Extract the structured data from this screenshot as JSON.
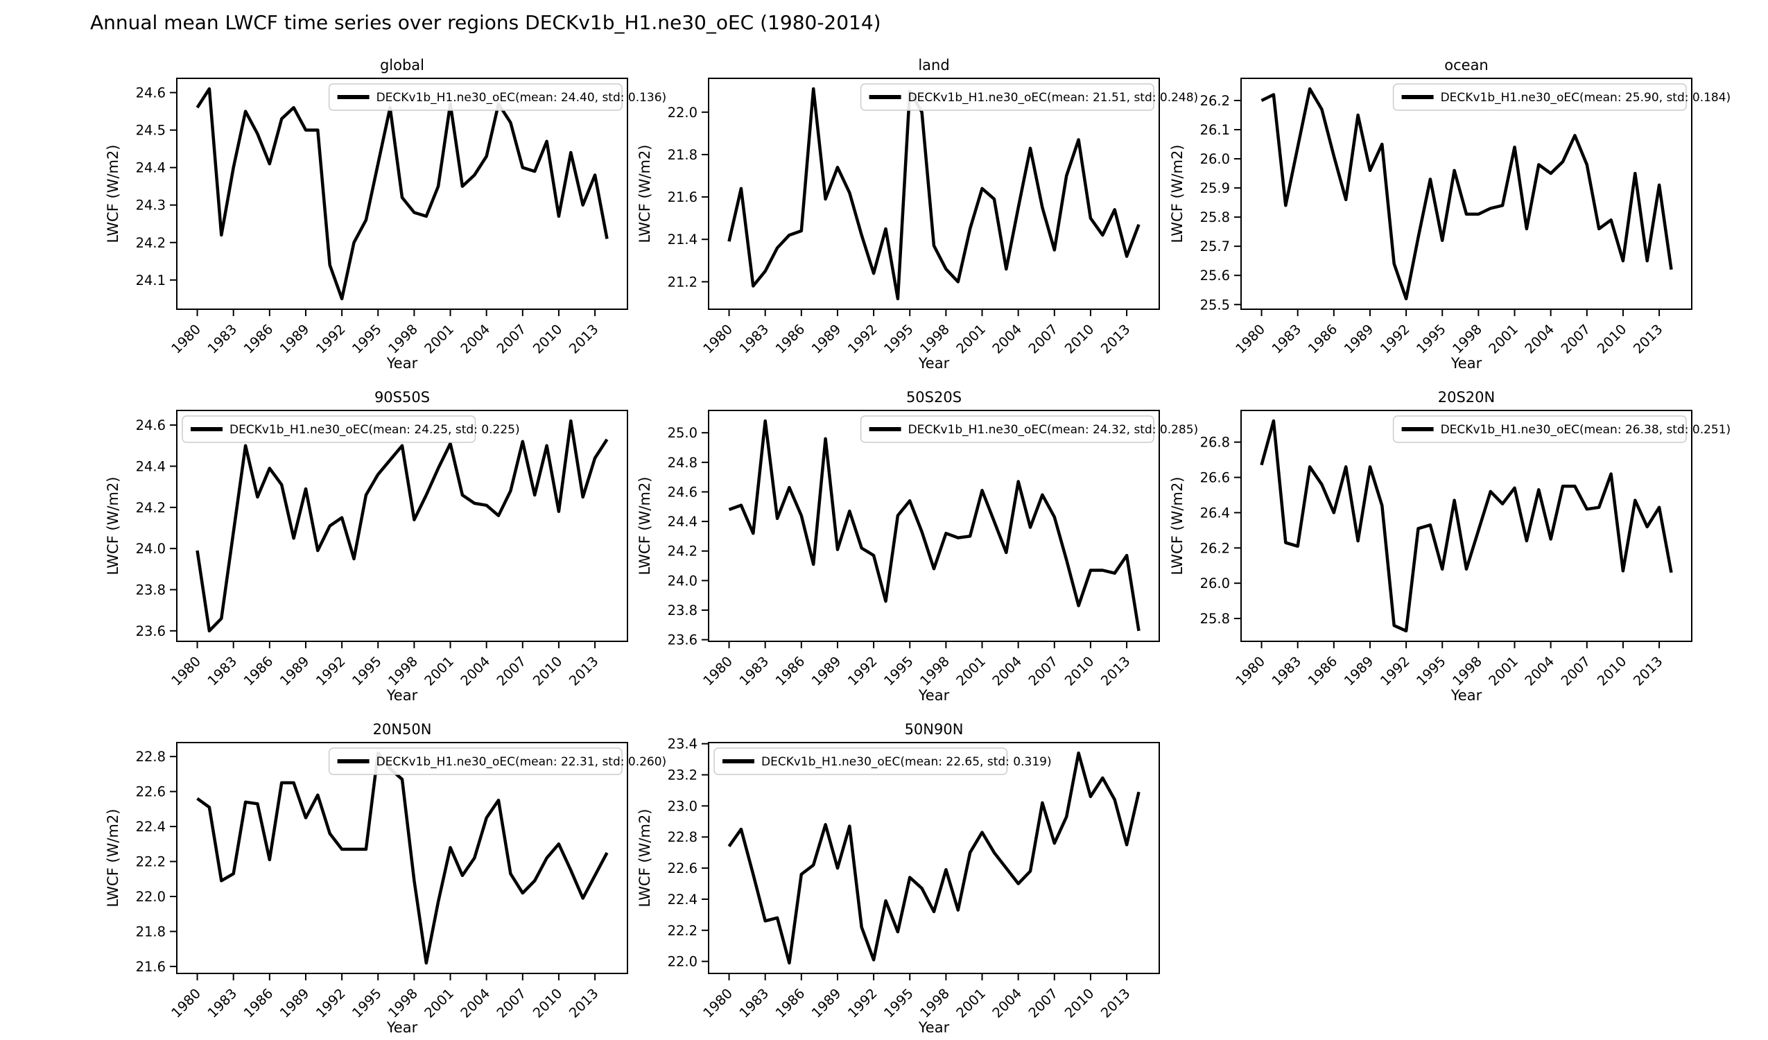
{
  "figure": {
    "suptitle": "Annual mean LWCF time series over regions DECKv1b_H1.ne30_oEC (1980-2014)",
    "xlabel": "Year",
    "ylabel": "LWCF (W/m2)",
    "series_name": "DECKv1b_H1.ne30_oEC",
    "line_color": "#000000",
    "background_color": "#ffffff",
    "legend_border_color": "#cccccc"
  },
  "chart_data": [
    {
      "type": "line",
      "title": "global",
      "legend_label": "DECKv1b_H1.ne30_oEC(mean: 24.40, std: 0.136)",
      "mean": 24.4,
      "std": 0.136,
      "legend_loc": "upper right",
      "x_start": 1980,
      "x_end": 2014,
      "xticks": [
        1980,
        1983,
        1986,
        1989,
        1992,
        1995,
        1998,
        2001,
        2004,
        2007,
        2010,
        2013
      ],
      "yticks": [
        "24.1",
        "24.2",
        "24.3",
        "24.4",
        "24.5",
        "24.6"
      ],
      "values": [
        24.56,
        24.61,
        24.22,
        24.4,
        24.55,
        24.49,
        24.41,
        24.53,
        24.56,
        24.5,
        24.5,
        24.14,
        24.05,
        24.2,
        24.26,
        24.41,
        24.56,
        24.32,
        24.28,
        24.27,
        24.35,
        24.57,
        24.35,
        24.38,
        24.43,
        24.57,
        24.52,
        24.4,
        24.39,
        24.47,
        24.27,
        24.44,
        24.3,
        24.38,
        24.21
      ]
    },
    {
      "type": "line",
      "title": "land",
      "legend_label": "DECKv1b_H1.ne30_oEC(mean: 21.51, std: 0.248)",
      "mean": 21.51,
      "std": 0.248,
      "legend_loc": "upper right",
      "x_start": 1980,
      "x_end": 2014,
      "xticks": [
        1980,
        1983,
        1986,
        1989,
        1992,
        1995,
        1998,
        2001,
        2004,
        2007,
        2010,
        2013
      ],
      "yticks": [
        "21.2",
        "21.4",
        "21.6",
        "21.8",
        "22.0"
      ],
      "values": [
        21.39,
        21.64,
        21.18,
        21.25,
        21.36,
        21.42,
        21.44,
        22.11,
        21.59,
        21.74,
        21.62,
        21.42,
        21.24,
        21.45,
        21.12,
        22.1,
        22.0,
        21.37,
        21.26,
        21.2,
        21.45,
        21.64,
        21.59,
        21.26,
        21.55,
        21.83,
        21.55,
        21.35,
        21.7,
        21.87,
        21.5,
        21.42,
        21.54,
        21.32,
        21.47
      ]
    },
    {
      "type": "line",
      "title": "ocean",
      "legend_label": "DECKv1b_H1.ne30_oEC(mean: 25.90, std: 0.184)",
      "mean": 25.9,
      "std": 0.184,
      "legend_loc": "upper right",
      "x_start": 1980,
      "x_end": 2014,
      "xticks": [
        1980,
        1983,
        1986,
        1989,
        1992,
        1995,
        1998,
        2001,
        2004,
        2007,
        2010,
        2013
      ],
      "yticks": [
        "25.5",
        "25.6",
        "25.7",
        "25.8",
        "25.9",
        "26.0",
        "26.1",
        "26.2"
      ],
      "values": [
        26.2,
        26.22,
        25.84,
        26.04,
        26.24,
        26.17,
        26.01,
        25.86,
        26.15,
        25.96,
        26.05,
        25.64,
        25.52,
        25.73,
        25.93,
        25.72,
        25.96,
        25.81,
        25.81,
        25.83,
        25.84,
        26.04,
        25.76,
        25.98,
        25.95,
        25.99,
        26.08,
        25.98,
        25.76,
        25.79,
        25.65,
        25.95,
        25.65,
        25.91,
        25.62
      ]
    },
    {
      "type": "line",
      "title": "90S50S",
      "legend_label": "DECKv1b_H1.ne30_oEC(mean: 24.25, std: 0.225)",
      "mean": 24.25,
      "std": 0.225,
      "legend_loc": "upper left",
      "x_start": 1980,
      "x_end": 2014,
      "xticks": [
        1980,
        1983,
        1986,
        1989,
        1992,
        1995,
        1998,
        2001,
        2004,
        2007,
        2010,
        2013
      ],
      "yticks": [
        "23.6",
        "23.8",
        "24.0",
        "24.2",
        "24.4",
        "24.6"
      ],
      "values": [
        23.99,
        23.6,
        23.66,
        24.08,
        24.5,
        24.25,
        24.39,
        24.31,
        24.05,
        24.29,
        23.99,
        24.11,
        24.15,
        23.95,
        24.26,
        24.36,
        24.43,
        24.5,
        24.14,
        24.26,
        24.39,
        24.51,
        24.26,
        24.22,
        24.21,
        24.16,
        24.28,
        24.52,
        24.26,
        24.5,
        24.18,
        24.62,
        24.25,
        24.44,
        24.53
      ]
    },
    {
      "type": "line",
      "title": "50S20S",
      "legend_label": "DECKv1b_H1.ne30_oEC(mean: 24.32, std: 0.285)",
      "mean": 24.32,
      "std": 0.285,
      "legend_loc": "upper right",
      "x_start": 1980,
      "x_end": 2014,
      "xticks": [
        1980,
        1983,
        1986,
        1989,
        1992,
        1995,
        1998,
        2001,
        2004,
        2007,
        2010,
        2013
      ],
      "yticks": [
        "23.6",
        "23.8",
        "24.0",
        "24.2",
        "24.4",
        "24.6",
        "24.8",
        "25.0"
      ],
      "values": [
        24.48,
        24.51,
        24.32,
        25.08,
        24.42,
        24.63,
        24.44,
        24.11,
        24.96,
        24.21,
        24.47,
        24.22,
        24.17,
        23.86,
        24.44,
        24.54,
        24.33,
        24.08,
        24.32,
        24.29,
        24.3,
        24.61,
        24.4,
        24.19,
        24.67,
        24.36,
        24.58,
        24.43,
        24.14,
        23.83,
        24.07,
        24.07,
        24.05,
        24.17,
        23.66
      ]
    },
    {
      "type": "line",
      "title": "20S20N",
      "legend_label": "DECKv1b_H1.ne30_oEC(mean: 26.38, std: 0.251)",
      "mean": 26.38,
      "std": 0.251,
      "legend_loc": "upper right",
      "x_start": 1980,
      "x_end": 2014,
      "xticks": [
        1980,
        1983,
        1986,
        1989,
        1992,
        1995,
        1998,
        2001,
        2004,
        2007,
        2010,
        2013
      ],
      "yticks": [
        "25.8",
        "26.0",
        "26.2",
        "26.4",
        "26.6",
        "26.8"
      ],
      "values": [
        26.67,
        26.92,
        26.23,
        26.21,
        26.66,
        26.56,
        26.4,
        26.66,
        26.24,
        26.66,
        26.44,
        25.76,
        25.73,
        26.31,
        26.33,
        26.08,
        26.47,
        26.08,
        26.3,
        26.52,
        26.45,
        26.54,
        26.24,
        26.53,
        26.25,
        26.55,
        26.55,
        26.42,
        26.43,
        26.62,
        26.07,
        26.47,
        26.32,
        26.43,
        26.06
      ]
    },
    {
      "type": "line",
      "title": "20N50N",
      "legend_label": "DECKv1b_H1.ne30_oEC(mean: 22.31, std: 0.260)",
      "mean": 22.31,
      "std": 0.26,
      "legend_loc": "upper right",
      "x_start": 1980,
      "x_end": 2014,
      "xticks": [
        1980,
        1983,
        1986,
        1989,
        1992,
        1995,
        1998,
        2001,
        2004,
        2007,
        2010,
        2013
      ],
      "yticks": [
        "21.6",
        "21.8",
        "22.0",
        "22.2",
        "22.4",
        "22.6",
        "22.8"
      ],
      "values": [
        22.56,
        22.51,
        22.09,
        22.13,
        22.54,
        22.53,
        22.21,
        22.65,
        22.65,
        22.45,
        22.58,
        22.36,
        22.27,
        22.27,
        22.27,
        22.82,
        22.73,
        22.67,
        22.09,
        21.62,
        21.97,
        22.28,
        22.12,
        22.22,
        22.45,
        22.55,
        22.13,
        22.02,
        22.09,
        22.22,
        22.3,
        22.15,
        21.99,
        22.12,
        22.25
      ]
    },
    {
      "type": "line",
      "title": "50N90N",
      "legend_label": "DECKv1b_H1.ne30_oEC(mean: 22.65, std: 0.319)",
      "mean": 22.65,
      "std": 0.319,
      "legend_loc": "upper left",
      "x_start": 1980,
      "x_end": 2014,
      "xticks": [
        1980,
        1983,
        1986,
        1989,
        1992,
        1995,
        1998,
        2001,
        2004,
        2007,
        2010,
        2013
      ],
      "yticks": [
        "22.0",
        "22.2",
        "22.4",
        "22.6",
        "22.8",
        "23.0",
        "23.2",
        "23.4"
      ],
      "values": [
        22.74,
        22.85,
        22.56,
        22.26,
        22.28,
        21.99,
        22.56,
        22.62,
        22.88,
        22.6,
        22.87,
        22.22,
        22.01,
        22.39,
        22.19,
        22.54,
        22.47,
        22.32,
        22.59,
        22.33,
        22.7,
        22.83,
        22.7,
        22.6,
        22.5,
        22.58,
        23.02,
        22.76,
        22.93,
        23.34,
        23.06,
        23.18,
        23.04,
        22.75,
        23.09
      ]
    }
  ]
}
